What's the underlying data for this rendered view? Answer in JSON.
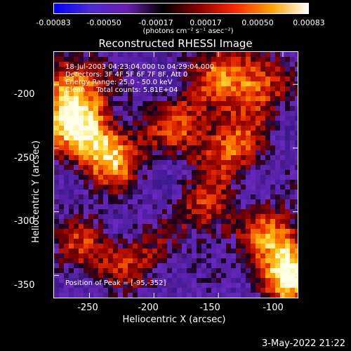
{
  "colorbar": {
    "labels": [
      "-0.00083",
      "-0.00050",
      "-0.00017",
      "0.00017",
      "0.00050",
      "0.00083"
    ],
    "units": "(photons cm⁻² s⁻¹ asec⁻²)",
    "colors": [
      "#0000ff",
      "#4b2ad1",
      "#6a1fb0",
      "#000000",
      "#8b0000",
      "#ff2a00",
      "#ffa200",
      "#ffffff"
    ]
  },
  "title": "Reconstructed RHESSI Image",
  "info": {
    "line1": "18-Jul-2003 04:23:04.000 to 04:29:04.000",
    "line2": "Detectors: 3F 4F 5F 6F 7F 8F, Att 0",
    "line3": "Energy Range: 25.0 - 50.0 keV",
    "line4": "Clean     Total counts: 5.81E+04",
    "peak": "Position of Peak = [-95,-352]"
  },
  "axes": {
    "xlabel": "Heliocentric X (arcsec)",
    "ylabel": "Heliocentric Y (arcsec)",
    "xticks": [
      "-250",
      "-200",
      "-150",
      "-100"
    ],
    "yticks": [
      "-200",
      "-250",
      "-300",
      "-350"
    ],
    "xlim": [
      -278,
      -88
    ],
    "ylim": [
      -368,
      -174
    ]
  },
  "timestamp": "3-May-2022 21:22",
  "chart_data": {
    "type": "heatmap",
    "title": "Reconstructed RHESSI Image",
    "xlabel": "Heliocentric X (arcsec)",
    "ylabel": "Heliocentric Y (arcsec)",
    "xlim": [
      -278,
      -88
    ],
    "ylim": [
      -368,
      -174
    ],
    "color_range": [
      -0.00083,
      0.00083
    ],
    "colorbar_ticks": [
      -0.00083,
      -0.0005,
      -0.00017,
      0.00017,
      0.0005,
      0.00083
    ],
    "peak_position": [
      -95,
      -352
    ],
    "bright_regions": [
      {
        "x": -235,
        "y": -255,
        "level": 1.0
      },
      {
        "x": -265,
        "y": -230,
        "level": 0.85
      },
      {
        "x": -262,
        "y": -200,
        "level": 0.8
      },
      {
        "x": -95,
        "y": -352,
        "level": 1.0
      },
      {
        "x": -105,
        "y": -320,
        "level": 0.7
      },
      {
        "x": -140,
        "y": -250,
        "level": 0.7
      },
      {
        "x": -120,
        "y": -200,
        "level": 0.75
      },
      {
        "x": -180,
        "y": -230,
        "level": 0.6
      },
      {
        "x": -160,
        "y": -300,
        "level": 0.6
      },
      {
        "x": -210,
        "y": -340,
        "level": 0.5
      },
      {
        "x": -255,
        "y": -330,
        "level": 0.55
      },
      {
        "x": -150,
        "y": -190,
        "level": 0.5
      }
    ]
  }
}
